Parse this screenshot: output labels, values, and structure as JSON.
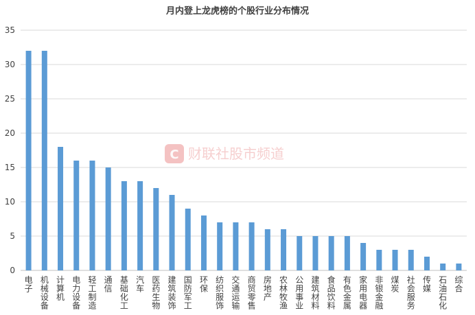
{
  "chart_data": {
    "type": "bar",
    "title": "月内登上龙虎榜的个股行业分布情况",
    "categories": [
      "电子",
      "机械设备",
      "计算机",
      "电力设备",
      "轻工制造",
      "通信",
      "基础化工",
      "汽车",
      "医药生物",
      "建筑装饰",
      "国防军工",
      "环保",
      "纺织服饰",
      "交通运输",
      "商贸零售",
      "房地产",
      "农林牧渔",
      "公用事业",
      "建筑材料",
      "食品饮料",
      "有色金属",
      "家用电器",
      "非银金融",
      "煤炭",
      "社会服务",
      "传媒",
      "石油石化",
      "综合"
    ],
    "values": [
      32,
      32,
      18,
      16,
      16,
      15,
      13,
      13,
      12,
      11,
      9,
      8,
      7,
      7,
      7,
      6,
      6,
      5,
      5,
      5,
      5,
      4,
      3,
      3,
      3,
      2,
      1,
      1
    ],
    "ylim": [
      0,
      35
    ],
    "yticks": [
      0,
      5,
      10,
      15,
      20,
      25,
      30,
      35
    ],
    "grid": true,
    "bar_color": "#5b9bd5",
    "xlabel": "",
    "ylabel": ""
  },
  "watermark": {
    "text": "财联社股市频道",
    "logo_letter": "C",
    "color": "#e05050"
  }
}
